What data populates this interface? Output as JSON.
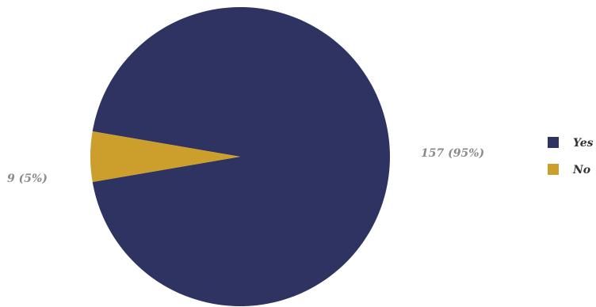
{
  "chart_data": {
    "type": "pie",
    "title": "",
    "slices": [
      {
        "label": "Yes",
        "value": 157,
        "percent": 95,
        "data_label": "157 (95%)",
        "color": "#2e3361"
      },
      {
        "label": "No",
        "value": 9,
        "percent": 5,
        "data_label": "9 (5%)",
        "color": "#cc9e2c"
      }
    ],
    "legend": {
      "placement": "right",
      "entries": [
        "Yes",
        "No"
      ]
    }
  }
}
